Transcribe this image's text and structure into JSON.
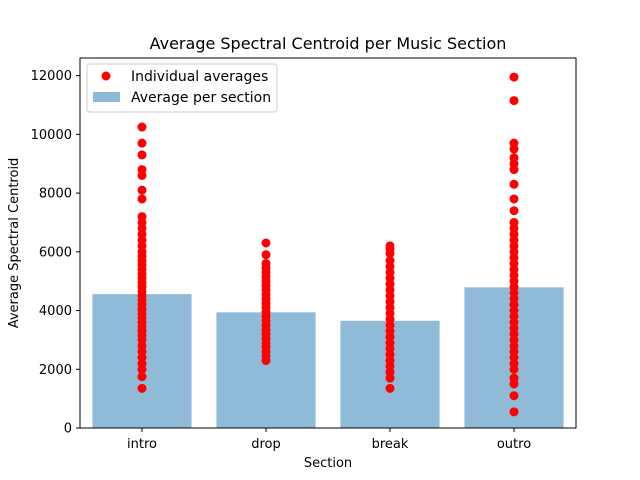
{
  "chart_data": {
    "type": "bar",
    "title": "Average Spectral Centroid per Music Section",
    "xlabel": "Section",
    "ylabel": "Average Spectral Centroid",
    "ylim": [
      0,
      12600
    ],
    "y_ticks": [
      0,
      2000,
      4000,
      6000,
      8000,
      10000,
      12000
    ],
    "categories": [
      "intro",
      "drop",
      "break",
      "outro"
    ],
    "legend": {
      "placement": "top-left",
      "entries": [
        "Individual averages",
        "Average per section"
      ]
    },
    "series": [
      {
        "name": "Average per section",
        "type": "bar",
        "color": "#8fbbd9",
        "values": [
          4560,
          3940,
          3650,
          4790
        ]
      },
      {
        "name": "Individual averages",
        "type": "scatter",
        "color": "#ff0000",
        "points": [
          {
            "category": "intro",
            "values": [
              1350,
              1750,
              2000,
              2200,
              2400,
              2600,
              2800,
              3000,
              3150,
              3300,
              3450,
              3600,
              3750,
              3900,
              4050,
              4200,
              4350,
              4500,
              4650,
              4800,
              4950,
              5100,
              5250,
              5400,
              5550,
              5700,
              5850,
              6000,
              6200,
              6400,
              6600,
              6800,
              7000,
              7200,
              7800,
              8100,
              8600,
              8800,
              9300,
              9700,
              10250
            ]
          },
          {
            "category": "drop",
            "values": [
              2300,
              2450,
              2600,
              2750,
              2900,
              3050,
              3200,
              3350,
              3500,
              3650,
              3800,
              3950,
              4100,
              4250,
              4400,
              4550,
              4700,
              4850,
              5000,
              5150,
              5300,
              5450,
              5600,
              5900,
              6300
            ]
          },
          {
            "category": "break",
            "values": [
              1350,
              1700,
              1900,
              2100,
              2300,
              2500,
              2700,
              2900,
              3100,
              3300,
              3500,
              3700,
              3900,
              4100,
              4300,
              4500,
              4700,
              4900,
              5100,
              5300,
              5500,
              5700,
              5950,
              6100,
              6200
            ]
          },
          {
            "category": "outro",
            "values": [
              550,
              1100,
              1500,
              1700,
              2000,
              2200,
              2400,
              2600,
              2800,
              3000,
              3200,
              3400,
              3600,
              3800,
              4000,
              4200,
              4400,
              4600,
              4800,
              5000,
              5200,
              5400,
              5600,
              5800,
              6000,
              6200,
              6400,
              6600,
              6800,
              7000,
              7400,
              7800,
              8300,
              8800,
              9000,
              9200,
              9500,
              9700,
              11150,
              11950
            ]
          }
        ]
      }
    ]
  }
}
